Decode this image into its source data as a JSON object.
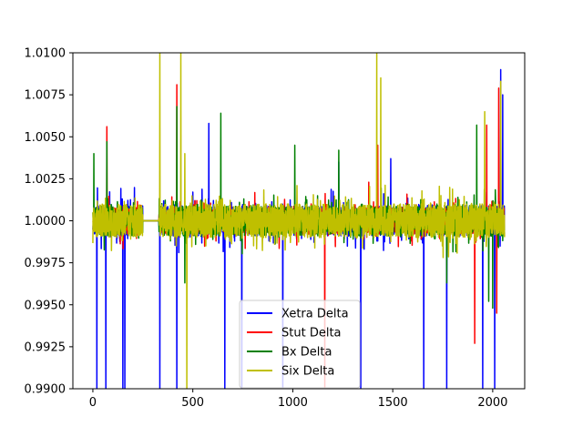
{
  "chart_data": {
    "type": "line",
    "title": "",
    "xlabel": "",
    "ylabel": "",
    "xlim": [
      -100,
      2160
    ],
    "ylim": [
      0.99,
      1.01
    ],
    "x_ticks": [
      0,
      500,
      1000,
      1500,
      2000
    ],
    "x_tick_labels": [
      "0",
      "500",
      "1000",
      "1500",
      "2000"
    ],
    "y_ticks": [
      0.99,
      0.9925,
      0.995,
      0.9975,
      1.0,
      1.0025,
      1.005,
      1.0075,
      1.01
    ],
    "y_tick_labels": [
      "0.9900",
      "0.9925",
      "0.9950",
      "0.9975",
      "1.0000",
      "1.0025",
      "1.0050",
      "1.0075",
      "1.0100"
    ],
    "grid": false,
    "legend_position": "lower-center",
    "n_points": 2060,
    "flat_segment": [
      250,
      330
    ],
    "series": [
      {
        "name": "Xetra Delta",
        "color": "#0000ff",
        "base_amplitude": 0.0009,
        "spikes": [
          [
            20,
            0.99
          ],
          [
            65,
            0.99
          ],
          [
            150,
            0.99
          ],
          [
            160,
            0.99
          ],
          [
            335,
            0.99
          ],
          [
            420,
            0.99
          ],
          [
            660,
            0.99
          ],
          [
            745,
            0.99
          ],
          [
            950,
            0.99
          ],
          [
            1340,
            0.99
          ],
          [
            1655,
            0.99
          ],
          [
            1770,
            0.99
          ],
          [
            1950,
            0.99
          ],
          [
            2010,
            0.99
          ],
          [
            580,
            1.0058
          ],
          [
            1230,
            1.0035
          ],
          [
            1490,
            1.0037
          ],
          [
            2040,
            1.009
          ],
          [
            2050,
            1.0075
          ]
        ]
      },
      {
        "name": "Stut Delta",
        "color": "#ff0000",
        "base_amplitude": 0.0008,
        "spikes": [
          [
            70,
            1.0056
          ],
          [
            420,
            1.0081
          ],
          [
            1160,
            0.99
          ],
          [
            1380,
            1.0023
          ],
          [
            1425,
            1.0045
          ],
          [
            1910,
            0.9927
          ],
          [
            1970,
            1.0057
          ],
          [
            2020,
            0.9945
          ],
          [
            2030,
            1.0079
          ]
        ]
      },
      {
        "name": "Bx Delta",
        "color": "#008000",
        "base_amplitude": 0.0009,
        "spikes": [
          [
            5,
            1.004
          ],
          [
            70,
            1.0047
          ],
          [
            420,
            1.0068
          ],
          [
            460,
            0.9963
          ],
          [
            640,
            1.0064
          ],
          [
            1010,
            1.0045
          ],
          [
            1230,
            1.0042
          ],
          [
            1770,
            0.9963
          ],
          [
            1920,
            1.0057
          ],
          [
            1980,
            0.9952
          ],
          [
            2000,
            0.9948
          ]
        ]
      },
      {
        "name": "Six Delta",
        "color": "#bfbf00",
        "base_amplitude": 0.001,
        "spikes": [
          [
            335,
            1.01
          ],
          [
            440,
            1.01
          ],
          [
            470,
            0.99
          ],
          [
            460,
            1.004
          ],
          [
            1420,
            1.01
          ],
          [
            1440,
            1.0085
          ],
          [
            1960,
            1.0065
          ],
          [
            2040,
            1.0083
          ],
          [
            2060,
            0.9957
          ]
        ]
      }
    ]
  }
}
